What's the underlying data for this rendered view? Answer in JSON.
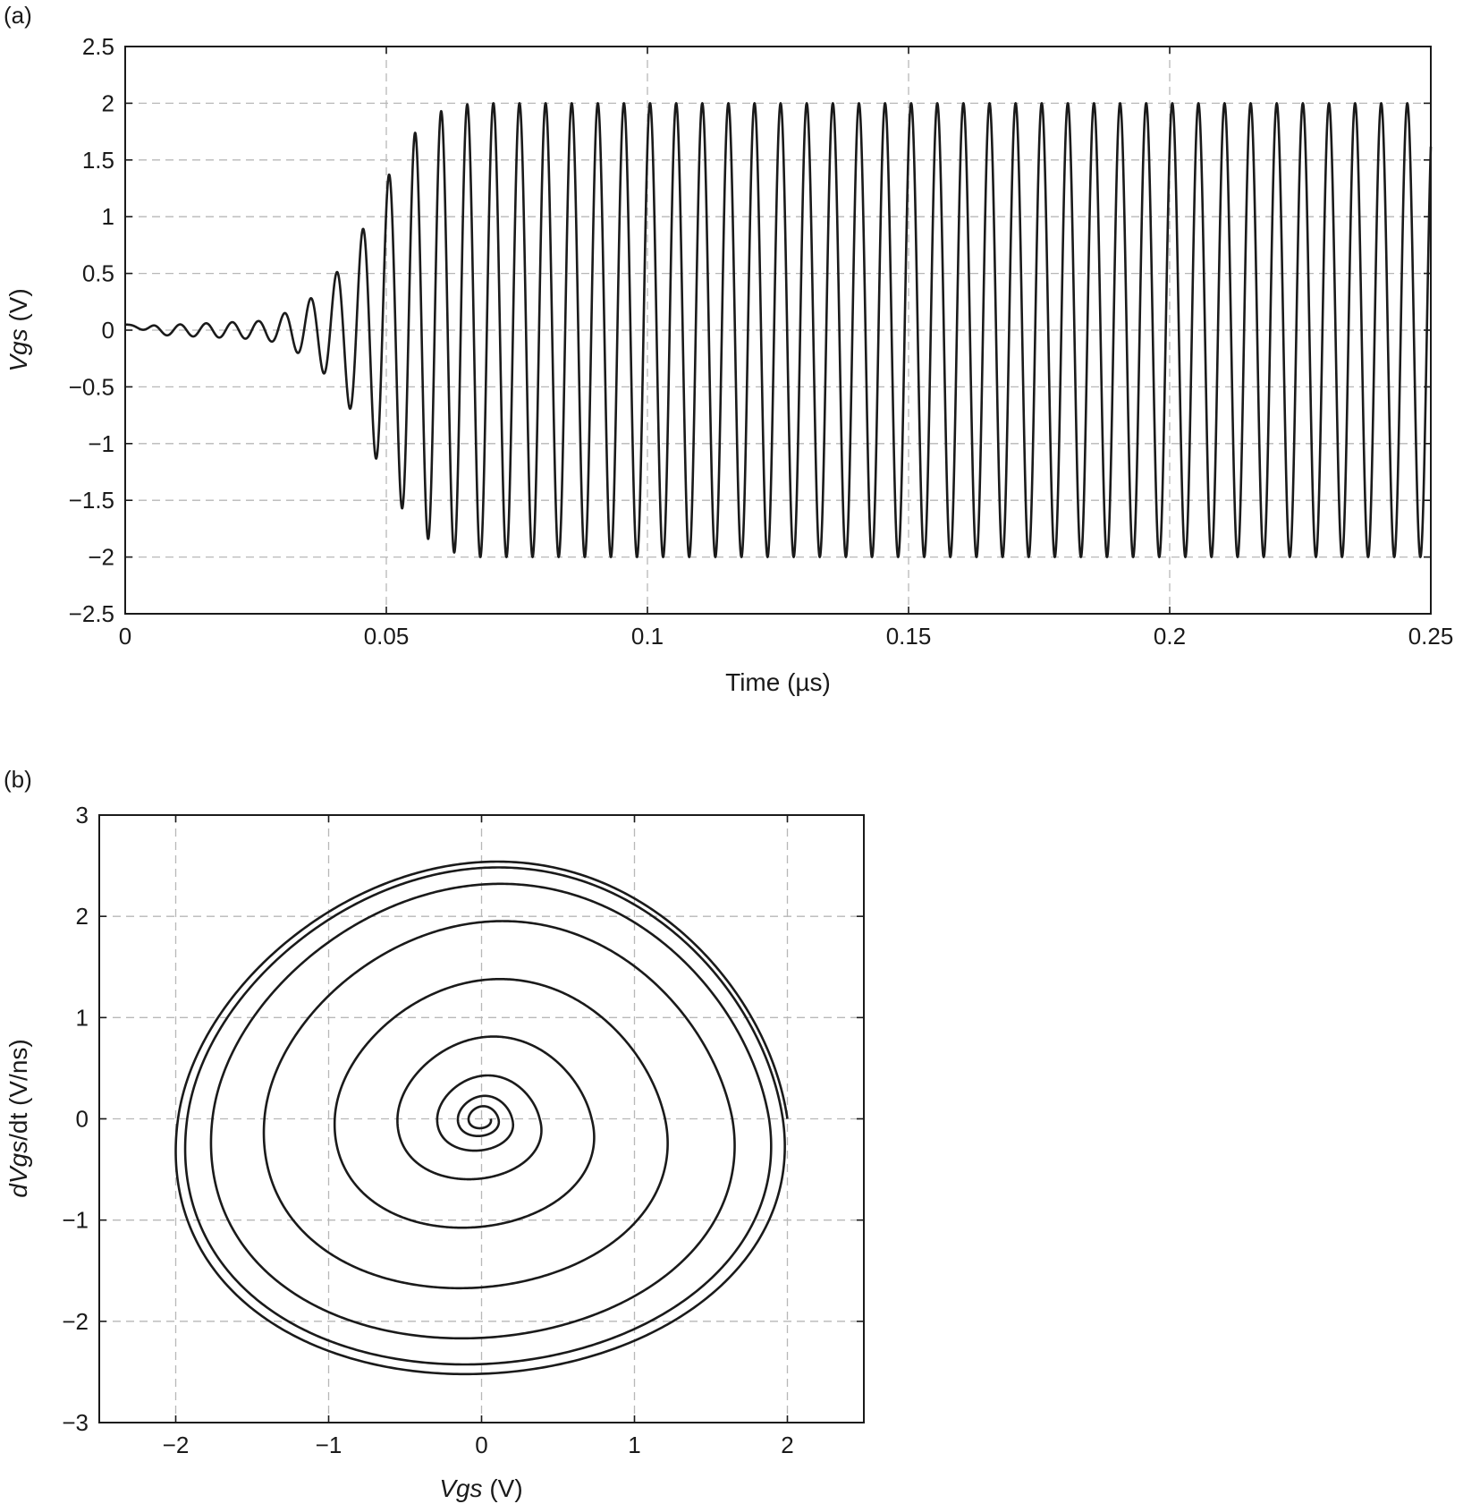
{
  "chart_data": [
    {
      "id": "a",
      "panel_label": "(a)",
      "type": "line",
      "xlabel": "Time (µs)",
      "ylabel_italic": "Vgs",
      "ylabel_rest": " (V)",
      "xlim": [
        0,
        0.25
      ],
      "ylim": [
        -2.5,
        2.5
      ],
      "xticks": [
        0,
        0.05,
        0.1,
        0.15,
        0.2,
        0.25
      ],
      "xtick_labels": [
        "0",
        "0.05",
        "0.1",
        "0.15",
        "0.2",
        "0.25"
      ],
      "yticks": [
        2.5,
        2,
        1.5,
        1,
        0.5,
        0,
        -0.5,
        -1,
        -1.5,
        -2,
        -2.5
      ],
      "ytick_labels": [
        "2.5",
        "2",
        "1.5",
        "1",
        "0.5",
        "0",
        "−0.5",
        "−1",
        "−1.5",
        "−2",
        "−2.5"
      ],
      "grid": true,
      "series": [
        {
          "oscillation_period_us": 0.005,
          "steady_amplitude_V": 2.0,
          "initial_value_V": 0.05,
          "peaks": [
            {
              "t": 0.0255,
              "v": 0.08
            },
            {
              "t": 0.028,
              "v": -0.1
            },
            {
              "t": 0.0305,
              "v": 0.15
            },
            {
              "t": 0.033,
              "v": -0.2
            },
            {
              "t": 0.0355,
              "v": 0.28
            },
            {
              "t": 0.038,
              "v": -0.38
            },
            {
              "t": 0.0405,
              "v": 0.51
            },
            {
              "t": 0.043,
              "v": -0.69
            },
            {
              "t": 0.0455,
              "v": 0.89
            },
            {
              "t": 0.048,
              "v": -1.13
            },
            {
              "t": 0.0505,
              "v": 1.37
            },
            {
              "t": 0.053,
              "v": -1.57
            },
            {
              "t": 0.0555,
              "v": 1.74
            },
            {
              "t": 0.058,
              "v": -1.84
            },
            {
              "t": 0.0605,
              "v": 1.93
            },
            {
              "t": 0.063,
              "v": -1.96
            },
            {
              "t": 0.0655,
              "v": 1.99
            },
            {
              "t": 0.068,
              "v": -2.0
            }
          ]
        }
      ]
    },
    {
      "id": "b",
      "panel_label": "(b)",
      "type": "line",
      "xlabel_italic": "Vgs",
      "xlabel_rest": " (V)",
      "ylabel_italic": "dVgs",
      "ylabel_rest": "/dt (V/ns)",
      "xlim": [
        -2.5,
        2.5
      ],
      "ylim": [
        -3,
        3
      ],
      "xticks": [
        -2,
        -1,
        0,
        1,
        2
      ],
      "xtick_labels": [
        "−2",
        "−1",
        "0",
        "1",
        "2"
      ],
      "yticks": [
        3,
        2,
        1,
        0,
        -1,
        -2,
        -3
      ],
      "ytick_labels": [
        "3",
        "2",
        "1",
        "0",
        "−1",
        "−2",
        "−3"
      ],
      "grid": true,
      "series": [
        {
          "shape": "phase-portrait spiral converging to a limit cycle",
          "limit_cycle": {
            "vgs_min": -2.0,
            "vgs_max": 2.0,
            "dvdt_min": -2.55,
            "dvdt_max": 2.55
          },
          "turns": 9
        }
      ]
    }
  ]
}
